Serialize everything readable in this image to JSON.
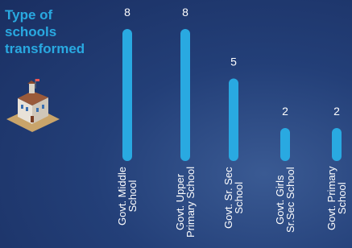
{
  "chart_data": {
    "type": "bar",
    "title": "Type of\nschools\ntransformed",
    "categories": [
      "Govt. Middle\nSchool",
      "Govt. Upper\nPrimary School",
      "Govt. Sr. Sec\nSchool",
      "Govt. Girls\nSr.Sec School",
      "Govt. Primary\nSchool"
    ],
    "values": [
      8,
      8,
      5,
      2,
      2
    ],
    "color": "#29a9e1"
  }
}
